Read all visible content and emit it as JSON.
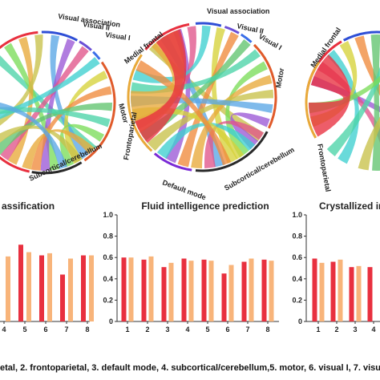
{
  "colors": {
    "red": "#e8303f",
    "orange": "#f8b47a",
    "axis": "#333333"
  },
  "circos": {
    "left": {
      "labels": [
        "Visual association",
        "Visual II",
        "Visual I",
        "Motor",
        "Subcortical/cerebellum"
      ]
    },
    "middle": {
      "labels": [
        "Visual association",
        "Visual II",
        "Visual I",
        "Medial frontal",
        "Frontoparietal",
        "Default mode",
        "Subcortical/cerebellum",
        "Motor"
      ]
    },
    "right": {
      "labels": [
        "Medial frontal",
        "Frontoparietal"
      ]
    }
  },
  "chart_data": [
    {
      "type": "bar",
      "title": "assification",
      "categories": [
        "4",
        "5",
        "6",
        "7",
        "8"
      ],
      "series": [
        {
          "values": [
            null,
            0.72,
            0.62,
            0.44,
            0.62
          ]
        },
        {
          "values": [
            0.61,
            0.65,
            0.64,
            0.59,
            0.62
          ]
        }
      ]
    },
    {
      "type": "bar",
      "title": "Fluid intelligence prediction",
      "categories": [
        "1",
        "2",
        "3",
        "4",
        "5",
        "6",
        "7",
        "8"
      ],
      "ylim": [
        0,
        1.0
      ],
      "yticks": [
        "0",
        "0.2",
        "0.4",
        "0.6",
        "0.8",
        "1.0"
      ],
      "series": [
        {
          "values": [
            0.6,
            0.58,
            0.51,
            0.59,
            0.58,
            0.45,
            0.56,
            0.58
          ]
        },
        {
          "values": [
            0.6,
            0.61,
            0.55,
            0.57,
            0.57,
            0.53,
            0.59,
            0.57
          ]
        }
      ]
    },
    {
      "type": "bar",
      "title": "Crystallized in",
      "categories": [
        "1",
        "2",
        "3",
        "4"
      ],
      "ylim": [
        0,
        1.0
      ],
      "yticks": [
        "0",
        "0.2",
        "0.4",
        "0.6",
        "0.8",
        "1.0"
      ],
      "series": [
        {
          "values": [
            0.59,
            0.56,
            0.51,
            0.51
          ]
        },
        {
          "values": [
            0.55,
            0.58,
            0.52,
            null
          ]
        }
      ]
    }
  ],
  "footer": "etal, 2. frontoparietal, 3. default mode, 4. subcortical/cerebellum,5. motor, 6. visual I, 7. visu"
}
